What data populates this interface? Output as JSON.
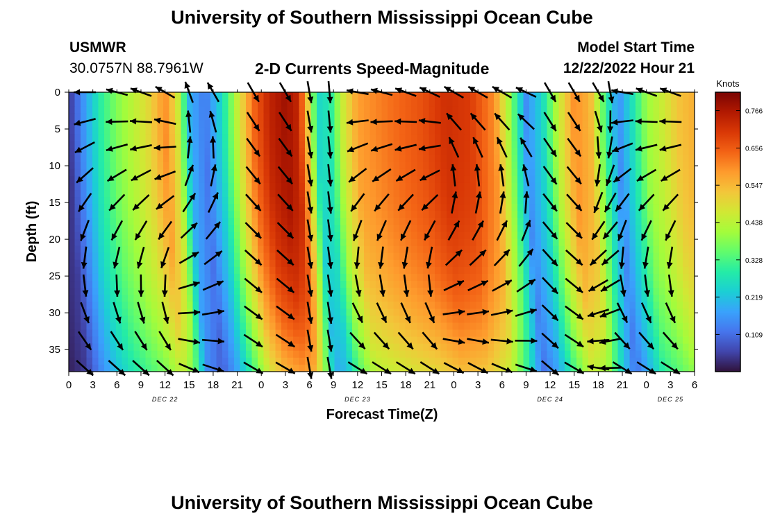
{
  "header": {
    "title": "University of Southern Mississippi Ocean Cube",
    "station": "USMWR",
    "coords": "30.0757N  88.7961W",
    "product": "2-D Currents Speed-Magnitude",
    "model_label": "Model Start Time",
    "model_time": "12/22/2022 Hour 21"
  },
  "footer": {
    "title": "University of Southern Mississippi Ocean Cube"
  },
  "colors": {
    "colormap": [
      "#30123b",
      "#4145ab",
      "#4675ed",
      "#39a2fc",
      "#1bcfd4",
      "#24eca6",
      "#61fc6c",
      "#a4fc3b",
      "#d1e834",
      "#f3c63a",
      "#fe9b2d",
      "#f36315",
      "#d93806",
      "#b11901",
      "#7a0402"
    ],
    "arrow": "#000000"
  },
  "chart_data": {
    "type": "heatmap",
    "title": "2-D Currents Speed-Magnitude",
    "xlabel": "Forecast Time(Z)",
    "ylabel": "Depth (ft)",
    "x_unit": "hours since DEC 22 00Z",
    "xlim": [
      0,
      78
    ],
    "ylim": [
      0,
      38
    ],
    "x_ticks": [
      0,
      3,
      6,
      9,
      12,
      15,
      18,
      21,
      24,
      27,
      30,
      33,
      36,
      39,
      42,
      45,
      48,
      51,
      54,
      57,
      60,
      63,
      66,
      69,
      72,
      75,
      78
    ],
    "x_tick_labels": [
      "0",
      "3",
      "6",
      "9",
      "12",
      "15",
      "18",
      "21",
      "0",
      "3",
      "6",
      "9",
      "12",
      "15",
      "18",
      "21",
      "0",
      "3",
      "6",
      "9",
      "12",
      "15",
      "18",
      "21",
      "0",
      "3",
      "6"
    ],
    "y_ticks": [
      0,
      5,
      10,
      15,
      20,
      25,
      30,
      35
    ],
    "y_tick_labels": [
      "0",
      "5",
      "10",
      "15",
      "20",
      "25",
      "30",
      "35"
    ],
    "date_labels": [
      {
        "label": "DEC 22",
        "x": 12
      },
      {
        "label": "DEC 23",
        "x": 36
      },
      {
        "label": "DEC 24",
        "x": 60
      },
      {
        "label": "DEC 25",
        "x": 75
      }
    ],
    "colorbar": {
      "unit": "Knots",
      "min": 0.0,
      "max": 0.82,
      "ticks": [
        0.109,
        0.219,
        0.328,
        0.438,
        0.547,
        0.656,
        0.766
      ],
      "tick_labels": [
        "0.109",
        "0.219",
        "0.328",
        "0.438",
        "0.547",
        "0.656",
        "0.766"
      ]
    },
    "speed_profile_at_surface": [
      {
        "t": 0,
        "speed": 0.1
      },
      {
        "t": 2,
        "speed": 0.2
      },
      {
        "t": 4,
        "speed": 0.3
      },
      {
        "t": 6,
        "speed": 0.38
      },
      {
        "t": 8,
        "speed": 0.44
      },
      {
        "t": 10,
        "speed": 0.5
      },
      {
        "t": 12,
        "speed": 0.6
      },
      {
        "t": 13.5,
        "speed": 0.48
      },
      {
        "t": 15,
        "speed": 0.2
      },
      {
        "t": 17,
        "speed": 0.12
      },
      {
        "t": 19,
        "speed": 0.25
      },
      {
        "t": 21,
        "speed": 0.45
      },
      {
        "t": 23,
        "speed": 0.64
      },
      {
        "t": 25,
        "speed": 0.74
      },
      {
        "t": 27,
        "speed": 0.78
      },
      {
        "t": 28.5,
        "speed": 0.74
      },
      {
        "t": 29.5,
        "speed": 0.58
      },
      {
        "t": 31,
        "speed": 0.25
      },
      {
        "t": 32.5,
        "speed": 0.28
      },
      {
        "t": 34,
        "speed": 0.45
      },
      {
        "t": 36,
        "speed": 0.58
      },
      {
        "t": 40,
        "speed": 0.63
      },
      {
        "t": 44,
        "speed": 0.67
      },
      {
        "t": 47,
        "speed": 0.72
      },
      {
        "t": 50,
        "speed": 0.7
      },
      {
        "t": 53,
        "speed": 0.6
      },
      {
        "t": 55,
        "speed": 0.4
      },
      {
        "t": 57,
        "speed": 0.15
      },
      {
        "t": 59,
        "speed": 0.25
      },
      {
        "t": 61,
        "speed": 0.45
      },
      {
        "t": 63,
        "speed": 0.6
      },
      {
        "t": 65,
        "speed": 0.55
      },
      {
        "t": 67,
        "speed": 0.3
      },
      {
        "t": 68.5,
        "speed": 0.15
      },
      {
        "t": 70,
        "speed": 0.25
      },
      {
        "t": 72,
        "speed": 0.4
      },
      {
        "t": 74,
        "speed": 0.46
      },
      {
        "t": 76,
        "speed": 0.53
      },
      {
        "t": 78,
        "speed": 0.56
      }
    ],
    "arrow_times": [
      2,
      6,
      9,
      12,
      15,
      18,
      23,
      27,
      30,
      32.5,
      36,
      39,
      42,
      45,
      48,
      51,
      54,
      57,
      60,
      63,
      66,
      67.5,
      69,
      72,
      75
    ],
    "arrow_depths": [
      0,
      4,
      7.5,
      11.3,
      15,
      18.8,
      22.5,
      26.3,
      30,
      33.8,
      37.5
    ],
    "arrow_directions_deg_surface": [
      180,
      165,
      160,
      150,
      110,
      120,
      300,
      300,
      280,
      275,
      170,
      165,
      160,
      155,
      150,
      150,
      150,
      155,
      300,
      300,
      300,
      280,
      170,
      160,
      160
    ],
    "arrow_directions_deg_bottom": [
      320,
      320,
      320,
      320,
      335,
      340,
      330,
      330,
      280,
      280,
      330,
      330,
      330,
      330,
      330,
      330,
      335,
      340,
      320,
      330,
      170,
      180,
      330,
      330,
      330
    ]
  }
}
